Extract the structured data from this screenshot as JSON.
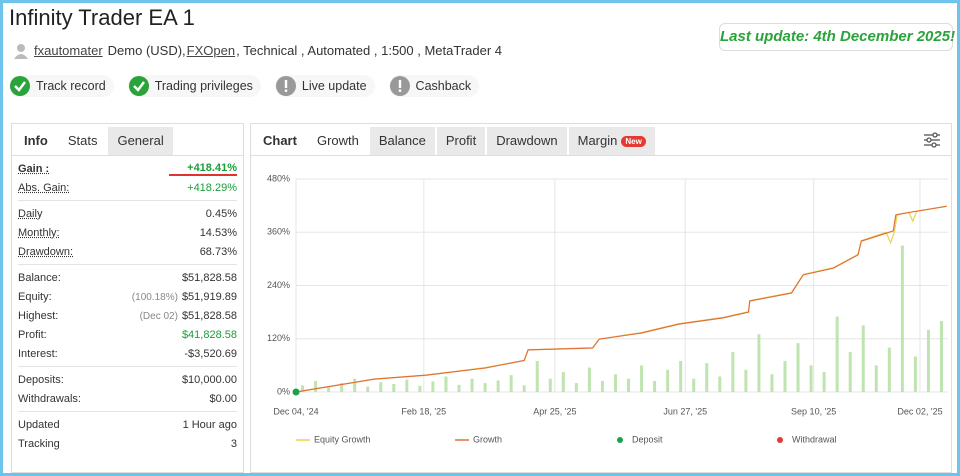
{
  "header": {
    "title": "Infinity Trader EA 1",
    "last_update": "Last update: 4th December 2025!",
    "user": "fxautomater",
    "details_before": "Demo (USD),",
    "broker": "FXOpen",
    "details_after": ", Technical , Automated , 1:500 , MetaTrader 4",
    "badges": [
      {
        "label": "Track record",
        "status": "ok"
      },
      {
        "label": "Trading privileges",
        "status": "ok"
      },
      {
        "label": "Live update",
        "status": "pending"
      },
      {
        "label": "Cashback",
        "status": "pending"
      }
    ]
  },
  "info_panel": {
    "tabs": [
      "Info",
      "Stats",
      "General"
    ],
    "groups": [
      [
        {
          "label": "Gain :",
          "value": "+418.41%",
          "color": "#1a9e3a"
        },
        {
          "label": "Abs. Gain:",
          "value": "+418.29%",
          "color": "#1a9e3a"
        }
      ],
      [
        {
          "label": "Daily",
          "value": "0.45%"
        },
        {
          "label": "Monthly:",
          "value": "14.53%"
        },
        {
          "label": "Drawdown:",
          "value": "68.73%"
        }
      ],
      [
        {
          "label": "Balance:",
          "value": "$51,828.58"
        },
        {
          "label": "Equity:",
          "note": "(100.18%)",
          "value": "$51,919.89"
        },
        {
          "label": "Highest:",
          "note": "(Dec 02)",
          "value": "$51,828.58"
        },
        {
          "label": "Profit:",
          "value": "$41,828.58",
          "color": "#1a9e3a"
        },
        {
          "label": "Interest:",
          "value": "-$3,520.69"
        }
      ],
      [
        {
          "label": "Deposits:",
          "value": "$10,000.00"
        },
        {
          "label": "Withdrawals:",
          "value": "$0.00"
        }
      ],
      [
        {
          "label": "Updated",
          "value": "1 Hour ago"
        },
        {
          "label": "Tracking",
          "value": "3"
        }
      ]
    ]
  },
  "chart_panel": {
    "tabs": [
      "Chart",
      "Growth",
      "Balance",
      "Profit",
      "Drawdown",
      "Margin"
    ],
    "new_badge": "New"
  },
  "chart_data": {
    "type": "line",
    "grid": true,
    "xlim": [
      0,
      100
    ],
    "xticks": [
      {
        "value": 0,
        "label": "Dec 04, '24"
      },
      {
        "value": 19.6,
        "label": "Feb 18, '25"
      },
      {
        "value": 39.7,
        "label": "Apr 25, '25"
      },
      {
        "value": 59.7,
        "label": "Jun 27, '25"
      },
      {
        "value": 79.4,
        "label": "Sep 10, '25"
      },
      {
        "value": 95.7,
        "label": "Dec 02, '25"
      }
    ],
    "ylim": [
      0,
      480
    ],
    "yticks": [
      {
        "value": 0,
        "label": "0%"
      },
      {
        "value": 120,
        "label": "120%"
      },
      {
        "value": 240,
        "label": "240%"
      },
      {
        "value": 360,
        "label": "360%"
      },
      {
        "value": 480,
        "label": "480%"
      }
    ],
    "bars": {
      "color": "#bfe4b0",
      "x": [
        1,
        3,
        5,
        7,
        9,
        11,
        13,
        15,
        17,
        19,
        21,
        23,
        25,
        27,
        29,
        31,
        33,
        35,
        37,
        39,
        41,
        43,
        45,
        47,
        49,
        51,
        53,
        55,
        57,
        59,
        61,
        63,
        65,
        67,
        69,
        71,
        73,
        75,
        77,
        79,
        81,
        83,
        85,
        87,
        89,
        91,
        93,
        95,
        97,
        99
      ],
      "values": [
        15,
        25,
        10,
        20,
        30,
        12,
        22,
        18,
        28,
        14,
        24,
        35,
        16,
        30,
        20,
        26,
        38,
        15,
        70,
        30,
        45,
        20,
        55,
        25,
        40,
        30,
        60,
        25,
        50,
        70,
        30,
        65,
        35,
        90,
        50,
        130,
        40,
        70,
        110,
        60,
        45,
        170,
        90,
        150,
        60,
        100,
        330,
        80,
        140,
        160
      ]
    },
    "series": [
      {
        "name": "Equity Growth",
        "color": "#e8d44d",
        "x": [
          0,
          12,
          20,
          29,
          35,
          35.6,
          45.5,
          46.5,
          53,
          58.7,
          65.5,
          69.4,
          69.6,
          76,
          77.8,
          82.4,
          86.2,
          86.7,
          90.5,
          91.2,
          91.8,
          92.2,
          94,
          94.6,
          95.2,
          99.8
        ],
        "values": [
          0,
          29,
          38,
          55,
          71,
          95,
          100,
          119,
          134,
          154,
          168,
          181,
          206,
          224,
          265,
          280,
          310,
          341,
          360,
          336,
          362,
          400,
          405,
          385,
          407,
          419
        ]
      },
      {
        "name": "Growth",
        "color": "#e0703a",
        "x": [
          0,
          12,
          20,
          29,
          35,
          35.6,
          45.5,
          46.5,
          53,
          58.7,
          65.5,
          69.4,
          69.6,
          76,
          77.8,
          82.4,
          86.2,
          86.7,
          91.6,
          92,
          94.6,
          99.8
        ],
        "values": [
          0,
          29,
          38,
          54,
          71,
          95,
          99,
          119,
          133,
          153,
          167,
          180,
          205,
          223,
          264,
          279,
          309,
          340,
          363,
          399,
          406,
          418.41
        ]
      }
    ],
    "markers": [
      {
        "name": "Deposit",
        "color": "#1aa34a",
        "x": [
          0
        ],
        "values": [
          0
        ]
      },
      {
        "name": "Withdrawal",
        "color": "#e53935",
        "x": [],
        "values": []
      }
    ]
  }
}
